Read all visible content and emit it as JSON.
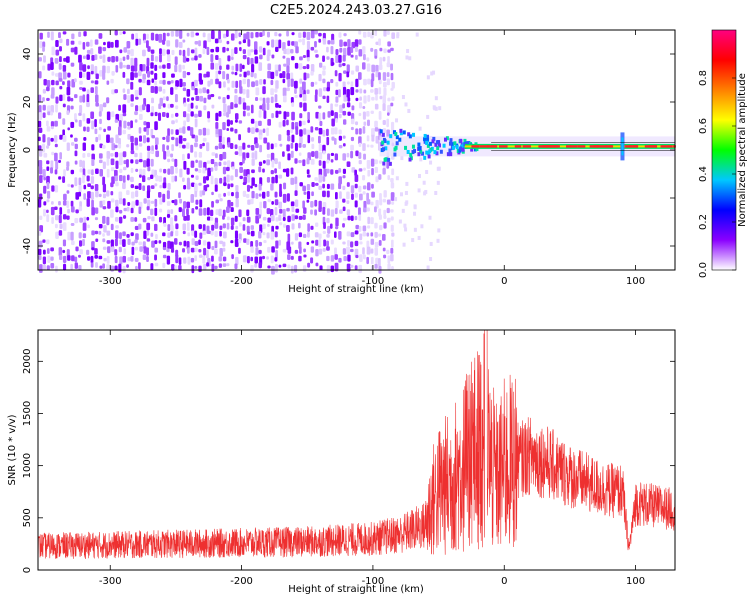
{
  "title": "C2E5.2024.243.03.27.G16",
  "chart_data": [
    {
      "type": "heatmap",
      "xlabel": "Height of straight line (km)",
      "ylabel": "Frequency (Hz)",
      "xlim": [
        -355,
        130
      ],
      "ylim": [
        -50,
        50
      ],
      "xticks": [
        -300,
        -200,
        -100,
        0,
        100
      ],
      "yticks": [
        -40,
        -20,
        0,
        20,
        40
      ],
      "xtick_labels": [
        "-300",
        "-200",
        "-100",
        "0",
        "100"
      ],
      "ytick_labels": [
        "-40",
        "-20",
        "0",
        "20",
        "40"
      ],
      "noise_region_x": [
        -355,
        -85
      ],
      "signal_track": {
        "frequency_hz": 1.5,
        "x_start": -95,
        "x_end": 130,
        "spike_x": 90
      },
      "colorbar": {
        "label": "Normalized spectral amplitude",
        "range": [
          0,
          1
        ],
        "ticks": [
          0.0,
          0.2,
          0.4,
          0.6,
          0.8
        ],
        "tick_labels": [
          "0.0",
          "0.2",
          "0.4",
          "0.6",
          "0.8"
        ],
        "colormap": [
          "#ffffff",
          "#8a00ff",
          "#0000ff",
          "#00c8ff",
          "#00ff00",
          "#ffff00",
          "#ff8000",
          "#ff0000",
          "#ff0080"
        ]
      },
      "grid": false
    },
    {
      "type": "line",
      "xlabel": "Height of straight line (km)",
      "ylabel": "SNR (10 * v/v)",
      "xlim": [
        -355,
        130
      ],
      "ylim": [
        0,
        2300
      ],
      "xticks": [
        -300,
        -200,
        -100,
        0,
        100
      ],
      "yticks": [
        0,
        500,
        1000,
        1500,
        2000
      ],
      "xtick_labels": [
        "-300",
        "-200",
        "-100",
        "0",
        "100"
      ],
      "ytick_labels": [
        "0",
        "500",
        "1000",
        "1500",
        "2000"
      ],
      "series": [
        {
          "color": "#ee3030",
          "x": [
            -355,
            -300,
            -250,
            -200,
            -150,
            -100,
            -80,
            -60,
            -55,
            -50,
            -40,
            -30,
            -20,
            -15,
            -10,
            -5,
            0,
            10,
            20,
            30,
            40,
            50,
            60,
            70,
            80,
            90,
            95,
            100,
            110,
            120,
            130
          ],
          "y": [
            230,
            240,
            250,
            260,
            270,
            300,
            340,
            430,
            640,
            760,
            850,
            1000,
            1180,
            1250,
            1000,
            860,
            1000,
            1050,
            1100,
            1050,
            980,
            900,
            850,
            800,
            760,
            760,
            200,
            650,
            620,
            600,
            580
          ]
        }
      ],
      "grid": false
    }
  ]
}
